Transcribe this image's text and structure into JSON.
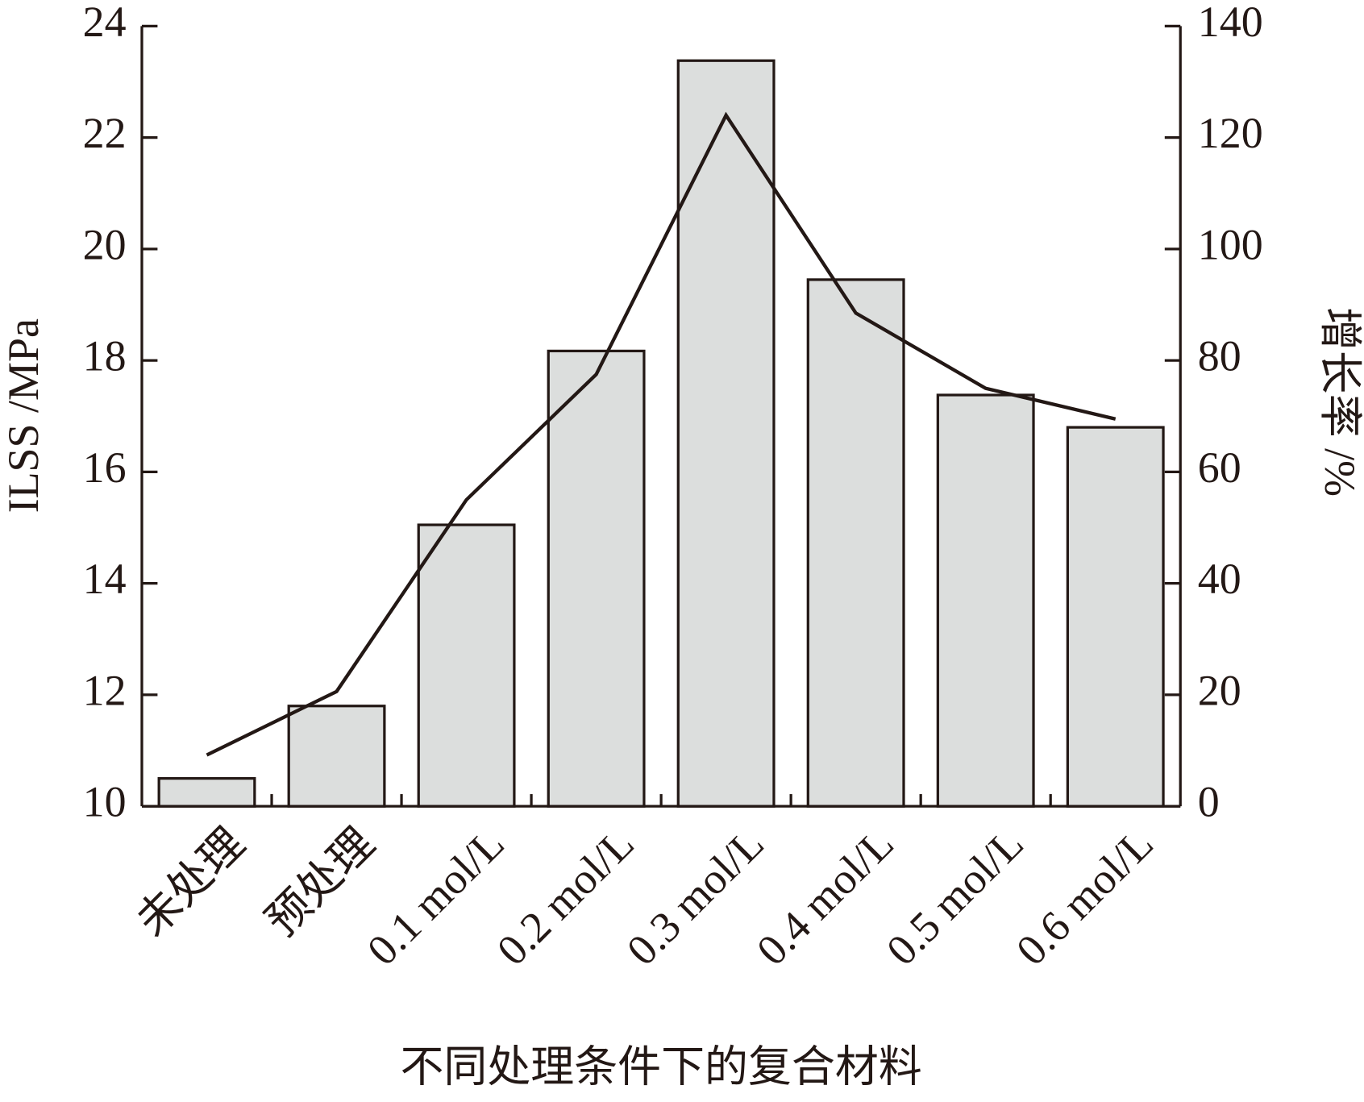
{
  "chart_data": {
    "type": "bar",
    "x_label": "不同处理条件下的复合材料",
    "y_label": "ILSS /MPa",
    "y2_label": "增长率 /%",
    "categories": [
      "未处理",
      "预处理",
      "0.1 mol/L",
      "0.2 mol/L",
      "0.3 mol/L",
      "0.4 mol/L",
      "0.5 mol/L",
      "0.6 mol/L"
    ],
    "series": [
      {
        "type": "bar",
        "color": "#dcdedd",
        "values": [
          10.5,
          11.8,
          15.05,
          18.17,
          23.38,
          19.45,
          17.38,
          16.8
        ]
      },
      {
        "type": "line",
        "axis": "y2",
        "color": "#231815",
        "values": [
          9.2,
          20.6,
          55,
          77.5,
          124,
          88.5,
          75,
          69.5
        ]
      }
    ],
    "ylim": [
      10,
      24
    ],
    "yticks": [
      10,
      12,
      14,
      16,
      18,
      20,
      22,
      24
    ],
    "y2lim": [
      0,
      140
    ],
    "y2ticks": [
      0,
      20,
      40,
      60,
      80,
      100,
      120,
      140
    ]
  }
}
